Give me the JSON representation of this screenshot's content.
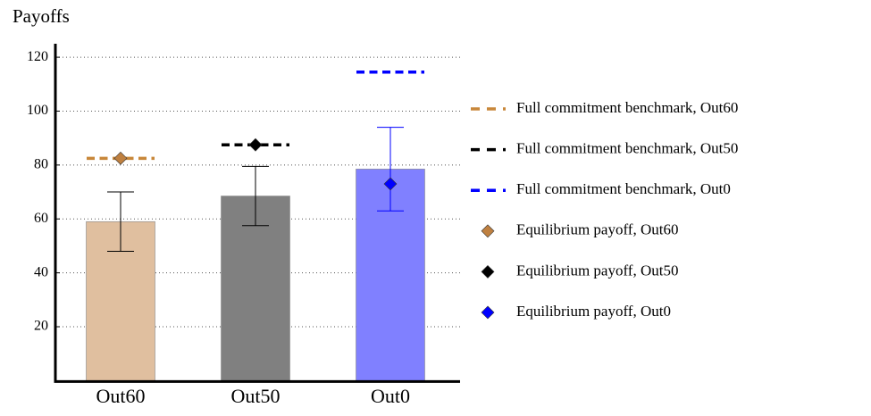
{
  "chart_data": {
    "type": "bar",
    "y_label": "Payoffs",
    "categories": [
      "Out60",
      "Out50",
      "Out0"
    ],
    "values": [
      59,
      68.5,
      78.5
    ],
    "errors": [
      11,
      11,
      15.5
    ],
    "bar_colors": [
      "#e0bf9f",
      "#808080",
      "#8080ff"
    ],
    "error_colors": [
      "#000000",
      "#000000",
      "#0000ff"
    ],
    "benchmarks": {
      "names": [
        "Full commitment benchmark, Out60",
        "Full commitment benchmark, Out50",
        "Full commitment benchmark, Out0"
      ],
      "values": [
        82.5,
        87.5,
        114.5
      ],
      "colors": [
        "#c8873a",
        "#000000",
        "#0000ff"
      ]
    },
    "equilibrium": {
      "names": [
        "Equilibrium payoff, Out60",
        "Equilibrium payoff, Out50",
        "Equilibrium payoff, Out0"
      ],
      "values": [
        82.5,
        87.5,
        73
      ],
      "colors": [
        "#bf8040",
        "#000000",
        "#0000ff"
      ]
    },
    "ylim": [
      0,
      125
    ],
    "yticks": [
      20,
      40,
      60,
      80,
      100,
      120
    ],
    "grid": true
  }
}
